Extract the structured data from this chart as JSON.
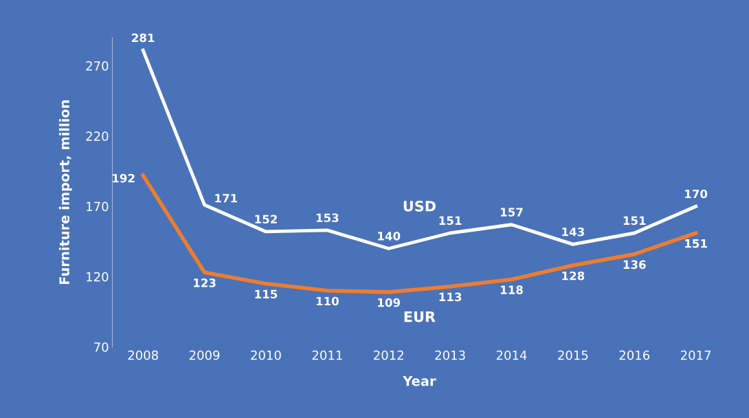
{
  "chart_data": {
    "type": "line",
    "xlabel": "Year",
    "ylabel": "Furniture import, million",
    "categories": [
      "2008",
      "2009",
      "2010",
      "2011",
      "2012",
      "2013",
      "2014",
      "2015",
      "2016",
      "2017"
    ],
    "series": [
      {
        "name": "USD",
        "color": "#ffffff",
        "values": [
          281,
          171,
          152,
          153,
          140,
          151,
          157,
          143,
          151,
          170
        ]
      },
      {
        "name": "EUR",
        "color": "#ed7d31",
        "values": [
          192,
          123,
          115,
          110,
          109,
          113,
          118,
          128,
          136,
          151
        ]
      }
    ],
    "ylim": [
      70,
      290
    ],
    "yticks": [
      70,
      120,
      170,
      220,
      270
    ],
    "data_labels": true,
    "grid": false,
    "legend": false,
    "line_style": "solid"
  }
}
